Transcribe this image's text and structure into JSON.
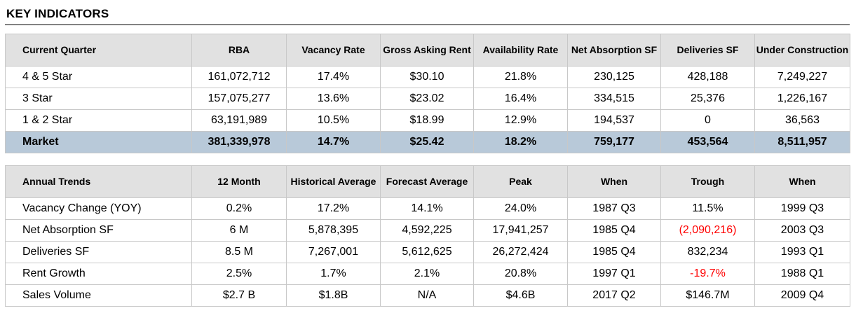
{
  "title": "KEY INDICATORS",
  "current": {
    "headers": [
      "Current Quarter",
      "RBA",
      "Vacancy Rate",
      "Gross Asking Rent",
      "Availability Rate",
      "Net Absorption SF",
      "Deliveries SF",
      "Under Construction"
    ],
    "rows": [
      [
        "4 & 5 Star",
        "161,072,712",
        "17.4%",
        "$30.10",
        "21.8%",
        "230,125",
        "428,188",
        "7,249,227"
      ],
      [
        "3 Star",
        "157,075,277",
        "13.6%",
        "$23.02",
        "16.4%",
        "334,515",
        "25,376",
        "1,226,167"
      ],
      [
        "1 & 2 Star",
        "63,191,989",
        "10.5%",
        "$18.99",
        "12.9%",
        "194,537",
        "0",
        "36,563"
      ]
    ],
    "market": [
      "Market",
      "381,339,978",
      "14.7%",
      "$25.42",
      "18.2%",
      "759,177",
      "453,564",
      "8,511,957"
    ]
  },
  "annual": {
    "headers": [
      "Annual Trends",
      "12 Month",
      "Historical Average",
      "Forecast Average",
      "Peak",
      "When",
      "Trough",
      "When"
    ],
    "rows": [
      [
        "Vacancy Change (YOY)",
        "0.2%",
        "17.2%",
        "14.1%",
        "24.0%",
        "1987 Q3",
        "11.5%",
        "1999 Q3"
      ],
      [
        "Net Absorption SF",
        "6 M",
        "5,878,395",
        "4,592,225",
        "17,941,257",
        "1985 Q4",
        "(2,090,216)",
        "2003 Q3"
      ],
      [
        "Deliveries SF",
        "8.5 M",
        "7,267,001",
        "5,612,625",
        "26,272,424",
        "1985 Q4",
        "832,234",
        "1993 Q1"
      ],
      [
        "Rent Growth",
        "2.5%",
        "1.7%",
        "2.1%",
        "20.8%",
        "1997 Q1",
        "-19.7%",
        "1988 Q1"
      ],
      [
        "Sales Volume",
        "$2.7 B",
        "$1.8B",
        "N/A",
        "$4.6B",
        "2017 Q2",
        "$146.7M",
        "2009 Q4"
      ]
    ]
  },
  "colors": {
    "header_bg": "#e1e1e1",
    "market_row_bg": "#b8c9d9",
    "negative_text": "#ff0000"
  }
}
